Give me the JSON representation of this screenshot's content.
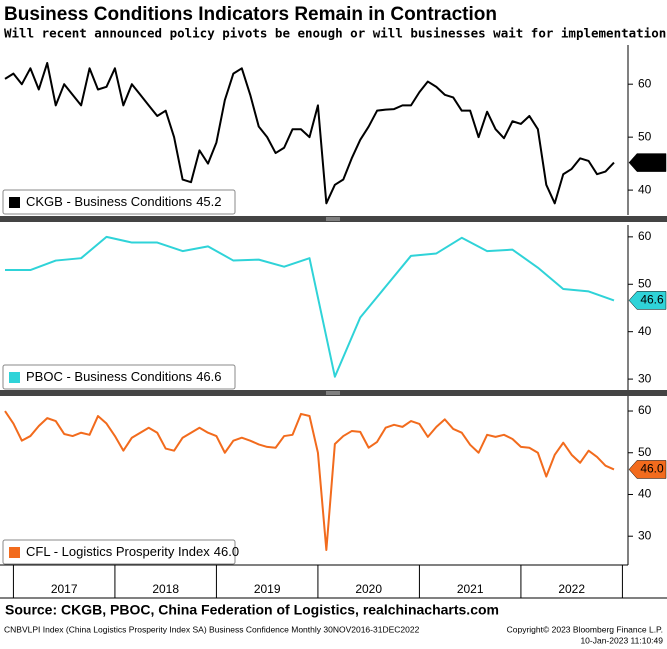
{
  "header": {
    "title": "Business Conditions Indicators Remain in Contraction",
    "subtitle": "Will recent announced policy pivots be enough or will businesses wait for implementation?"
  },
  "footer": {
    "source": "Source: CKGB, PBOC, China Federation of Logistics, realchinacharts.com",
    "note": "CNBVLPI Index (China Logistics Prosperity Index SA) Business Confidence  Monthly 30NOV2016-31DEC2022",
    "copyright": "Copyright© 2023 Bloomberg Finance L.P.",
    "timestamp": "10-Jan-2023 11:10:49"
  },
  "chart_data": [
    {
      "type": "line",
      "xlim": [
        2016.917,
        2023.055
      ],
      "ylim": [
        35.3,
        67.4
      ],
      "yticks": [
        40,
        50,
        60
      ],
      "x": [
        2016.917,
        2017.0,
        2017.083,
        2017.167,
        2017.25,
        2017.333,
        2017.417,
        2017.5,
        2017.583,
        2017.667,
        2017.75,
        2017.833,
        2017.917,
        2018.0,
        2018.083,
        2018.167,
        2018.25,
        2018.333,
        2018.417,
        2018.5,
        2018.583,
        2018.667,
        2018.75,
        2018.833,
        2018.917,
        2019.0,
        2019.083,
        2019.167,
        2019.25,
        2019.333,
        2019.417,
        2019.5,
        2019.583,
        2019.667,
        2019.75,
        2019.833,
        2019.917,
        2020.0,
        2020.083,
        2020.167,
        2020.25,
        2020.333,
        2020.417,
        2020.5,
        2020.583,
        2020.667,
        2020.75,
        2020.833,
        2020.917,
        2021.0,
        2021.083,
        2021.167,
        2021.25,
        2021.333,
        2021.417,
        2021.5,
        2021.583,
        2021.667,
        2021.75,
        2021.833,
        2021.917,
        2022.0,
        2022.083,
        2022.167,
        2022.25,
        2022.333,
        2022.417,
        2022.5,
        2022.583,
        2022.667,
        2022.75,
        2022.833,
        2022.917
      ],
      "series": [
        {
          "name": "CKGB - Business Conditions",
          "color": "#000000",
          "values": [
            61,
            62,
            60,
            63,
            59,
            64,
            56,
            60,
            58,
            56,
            63,
            59,
            59.5,
            63,
            56,
            60,
            58,
            56,
            54,
            55,
            50,
            42,
            41.5,
            47.5,
            45,
            49,
            57,
            62,
            63,
            58,
            52,
            50,
            47,
            48,
            51.5,
            51.5,
            50,
            56,
            37.5,
            41,
            42,
            46,
            49.5,
            52,
            55,
            55.2,
            55.3,
            56,
            56,
            58.5,
            60.5,
            59.5,
            58,
            57.5,
            55,
            55,
            50,
            54.8,
            51.5,
            49.8,
            53,
            52.5,
            54,
            51.5,
            41,
            37.5,
            43,
            44,
            46,
            45.5,
            43,
            43.5,
            45.2
          ]
        }
      ]
    },
    {
      "type": "line",
      "xlim": [
        2016.917,
        2023.055
      ],
      "ylim": [
        27.7,
        62.5
      ],
      "yticks": [
        30,
        40,
        50,
        60
      ],
      "x": [
        2016.917,
        2017.167,
        2017.417,
        2017.667,
        2017.917,
        2018.167,
        2018.417,
        2018.667,
        2018.917,
        2019.167,
        2019.417,
        2019.667,
        2019.917,
        2020.167,
        2020.417,
        2020.667,
        2020.917,
        2021.167,
        2021.417,
        2021.667,
        2021.917,
        2022.167,
        2022.417,
        2022.667,
        2022.917
      ],
      "series": [
        {
          "name": "PBOC - Business Conditions",
          "color": "#2fd3d8",
          "values": [
            53,
            53,
            55,
            55.5,
            60,
            58.8,
            58.8,
            57,
            58,
            55,
            55.2,
            53.7,
            55.5,
            30.5,
            43,
            49.5,
            56,
            56.5,
            59.8,
            57,
            57.3,
            53.5,
            49,
            48.5,
            46.6
          ]
        }
      ]
    },
    {
      "type": "line",
      "xlim": [
        2016.917,
        2023.055
      ],
      "ylim": [
        23.1,
        63.6
      ],
      "yticks": [
        30,
        40,
        50,
        60
      ],
      "xticks": [
        {
          "value": 2017.5,
          "label": "2017"
        },
        {
          "value": 2018.5,
          "label": "2018"
        },
        {
          "value": 2019.5,
          "label": "2019"
        },
        {
          "value": 2020.5,
          "label": "2020"
        },
        {
          "value": 2021.5,
          "label": "2021"
        },
        {
          "value": 2022.5,
          "label": "2022"
        }
      ],
      "x": [
        2016.917,
        2017.0,
        2017.083,
        2017.167,
        2017.25,
        2017.333,
        2017.417,
        2017.5,
        2017.583,
        2017.667,
        2017.75,
        2017.833,
        2017.917,
        2018.0,
        2018.083,
        2018.167,
        2018.25,
        2018.333,
        2018.417,
        2018.5,
        2018.583,
        2018.667,
        2018.75,
        2018.833,
        2018.917,
        2019.0,
        2019.083,
        2019.167,
        2019.25,
        2019.333,
        2019.417,
        2019.5,
        2019.583,
        2019.667,
        2019.75,
        2019.833,
        2019.917,
        2020.0,
        2020.083,
        2020.167,
        2020.25,
        2020.333,
        2020.417,
        2020.5,
        2020.583,
        2020.667,
        2020.75,
        2020.833,
        2020.917,
        2021.0,
        2021.083,
        2021.167,
        2021.25,
        2021.333,
        2021.417,
        2021.5,
        2021.583,
        2021.667,
        2021.75,
        2021.833,
        2021.917,
        2022.0,
        2022.083,
        2022.167,
        2022.25,
        2022.333,
        2022.417,
        2022.5,
        2022.583,
        2022.667,
        2022.75,
        2022.833,
        2022.917
      ],
      "series": [
        {
          "name": "CFL - Logistics Prosperity Index",
          "color": "#f26b1d",
          "values": [
            60,
            57,
            52.9,
            54,
            56.4,
            58.3,
            57.6,
            54.5,
            54,
            54.8,
            54.3,
            58.8,
            57,
            54,
            50.5,
            53.6,
            54.8,
            56,
            54.8,
            51,
            50.5,
            53.6,
            54.8,
            56,
            54.8,
            54,
            50,
            52.9,
            53.6,
            52.9,
            52,
            51.4,
            51.2,
            54,
            54.3,
            59.3,
            58.8,
            50,
            26.7,
            52.1,
            54,
            55.2,
            55,
            51.2,
            52.6,
            56,
            56.7,
            56.2,
            57.6,
            56.9,
            53.8,
            56.2,
            58,
            55.7,
            54.8,
            51.9,
            50,
            54.3,
            53.8,
            54.3,
            53.3,
            51.4,
            51.2,
            50,
            44.3,
            49.5,
            52.4,
            49.5,
            47.6,
            50.5,
            49,
            46.9,
            46.0
          ],
          "value_labels": [
            null,
            null,
            null,
            null,
            null,
            null,
            null,
            null,
            null,
            null,
            null,
            null,
            null,
            null,
            null,
            null,
            null,
            null,
            null,
            null,
            null,
            null,
            null,
            null,
            null,
            null,
            null,
            null,
            null,
            null,
            null,
            null,
            null,
            null,
            null,
            null,
            null,
            null,
            null,
            null,
            null,
            null,
            null,
            null,
            null,
            null,
            null,
            null,
            null,
            null,
            null,
            null,
            null,
            null,
            null,
            null,
            null,
            null,
            null,
            null,
            null,
            null,
            null,
            null,
            null,
            null,
            null,
            null,
            null,
            null,
            null,
            null,
            "46.0"
          ]
        }
      ]
    }
  ]
}
